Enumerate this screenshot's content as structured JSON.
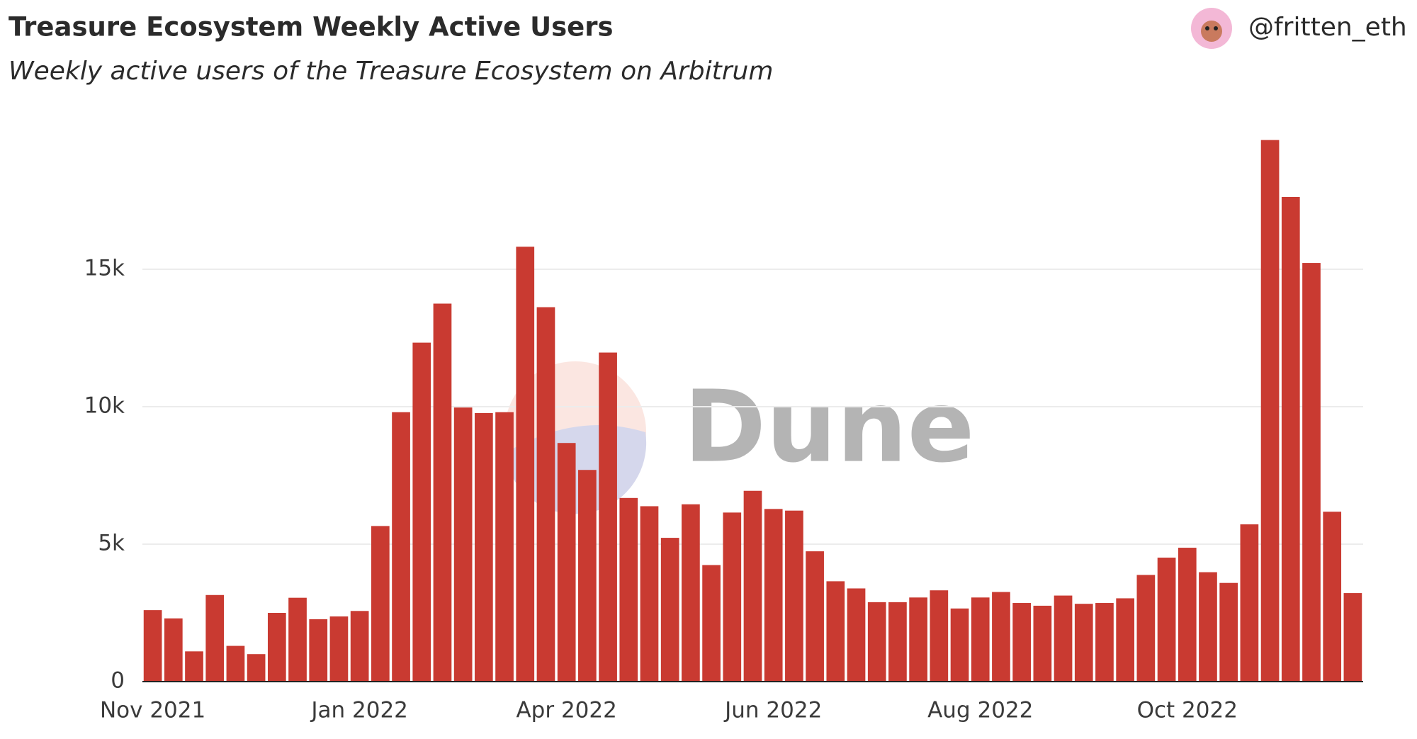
{
  "chart_data": {
    "type": "bar",
    "title": "Treasure Ecosystem Weekly Active Users",
    "subtitle": "Weekly active users of the Treasure Ecosystem on Arbitrum",
    "author": "@fritten_eth",
    "watermark": "Dune",
    "categories": [
      "Nov 2021",
      null,
      null,
      null,
      null,
      null,
      null,
      null,
      null,
      null,
      "Jan 2022",
      null,
      null,
      null,
      null,
      null,
      null,
      null,
      null,
      null,
      "Apr 2022",
      null,
      null,
      null,
      null,
      null,
      null,
      null,
      null,
      null,
      "Jun 2022",
      null,
      null,
      null,
      null,
      null,
      null,
      null,
      null,
      null,
      "Aug 2022",
      null,
      null,
      null,
      null,
      null,
      null,
      null,
      null,
      null,
      "Oct 2022",
      null,
      null,
      null,
      null,
      null,
      null,
      null,
      null
    ],
    "values": [
      2600,
      2300,
      1100,
      3150,
      1300,
      1000,
      2500,
      3050,
      2270,
      2370,
      2570,
      5660,
      9800,
      12330,
      13750,
      9970,
      9770,
      9800,
      15820,
      13620,
      8680,
      7700,
      11970,
      6680,
      6380,
      5230,
      6450,
      4240,
      6150,
      6940,
      6280,
      6220,
      4740,
      3650,
      3390,
      2890,
      2890,
      3060,
      3320,
      2660,
      3060,
      3260,
      2860,
      2760,
      3130,
      2830,
      2860,
      3030,
      3880,
      4510,
      4870,
      3980,
      3590,
      5720,
      19700,
      17630,
      15230,
      6180,
      3220
    ],
    "color": "#c93a31",
    "ylim": [
      0,
      20000
    ],
    "yticks": [
      0,
      {
        "value": 5000,
        "label": "5k"
      },
      {
        "value": 10000,
        "label": "10k"
      },
      {
        "value": 15000,
        "label": "15k"
      }
    ],
    "grid": true
  }
}
